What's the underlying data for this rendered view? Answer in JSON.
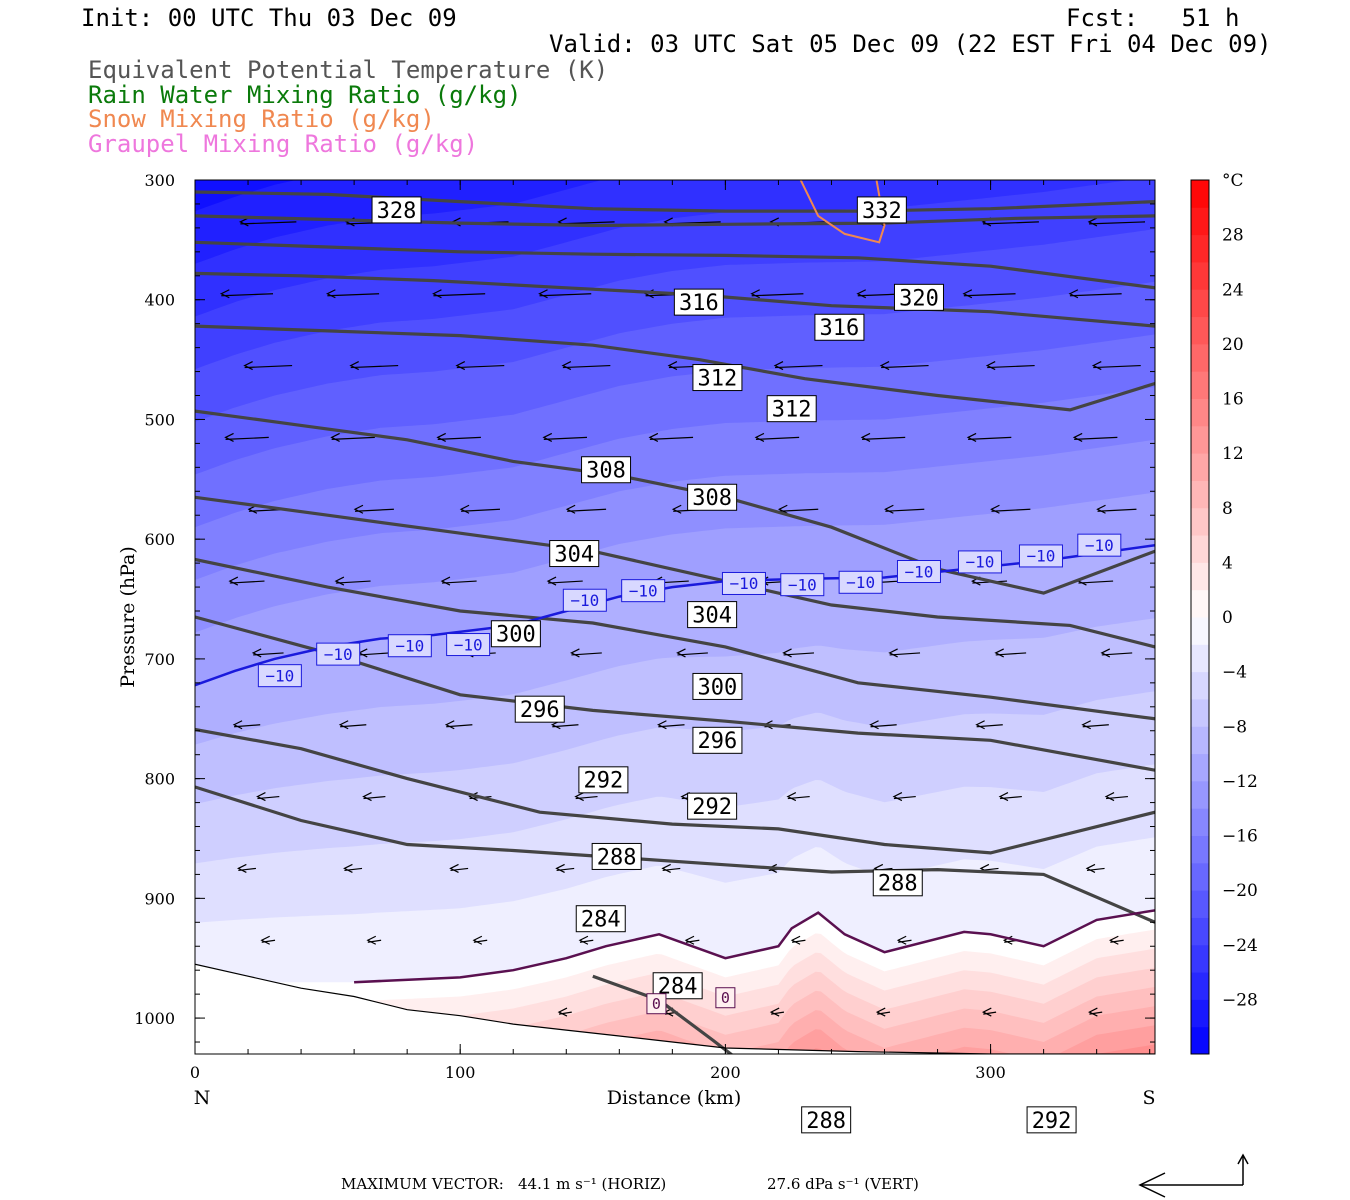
{
  "header": {
    "init": "Init: 00 UTC Thu 03 Dec 09",
    "fcst": "Fcst:   51 h",
    "valid": "Valid: 03 UTC Sat 05 Dec 09 (22 EST Fri 04 Dec 09)"
  },
  "legend": [
    {
      "label": "Equivalent Potential Temperature (K)",
      "color": "#555555"
    },
    {
      "label": "Rain Water Mixing Ratio (g/kg)",
      "color": "#0a7a0a"
    },
    {
      "label": "Snow Mixing Ratio (g/kg)",
      "color": "#f08850"
    },
    {
      "label": "Graupel Mixing Ratio (g/kg)",
      "color": "#ee77dd"
    }
  ],
  "footer": {
    "max_vector_label": "MAXIMUM VECTOR:",
    "horiz": "44.1 m s⁻¹ (HORIZ)",
    "vert": "27.6 dPa s⁻¹ (VERT)"
  },
  "chart_data": {
    "type": "contour",
    "xlabel": "Distance (km)",
    "ylabel": "Pressure (hPa)",
    "xlim": [
      0,
      362
    ],
    "ylim": [
      1030,
      300
    ],
    "x_ticks": [
      0,
      100,
      200,
      300
    ],
    "y_ticks": [
      300,
      400,
      500,
      600,
      700,
      800,
      900,
      1000
    ],
    "x_end_labels": {
      "left": "N",
      "right": "S"
    },
    "colorbar": {
      "unit": "°C",
      "levels": [
        -32,
        -30,
        -28,
        -26,
        -24,
        -22,
        -20,
        -18,
        -16,
        -14,
        -12,
        -10,
        -8,
        -6,
        -4,
        -2,
        0,
        2,
        4,
        6,
        8,
        10,
        12,
        14,
        16,
        18,
        20,
        22,
        24,
        26,
        28,
        30,
        32
      ],
      "tick_values": [
        28,
        24,
        20,
        16,
        12,
        8,
        4,
        0,
        -4,
        -8,
        -12,
        -16,
        -20,
        -24,
        -28
      ],
      "cold_color": "#0000ff",
      "warm_color": "#ff0000"
    },
    "theta_e_contours": [
      {
        "value": 328,
        "points": [
          [
            0,
            310
          ],
          [
            50,
            312
          ],
          [
            100,
            318
          ],
          [
            150,
            324
          ],
          [
            200,
            326
          ],
          [
            250,
            326
          ],
          [
            300,
            324
          ],
          [
            362,
            318
          ]
        ]
      },
      {
        "value": 332,
        "points": [
          [
            0,
            330
          ],
          [
            50,
            333
          ],
          [
            100,
            336
          ],
          [
            150,
            338
          ],
          [
            200,
            337
          ],
          [
            260,
            336
          ],
          [
            310,
            332
          ],
          [
            362,
            330
          ]
        ]
      },
      {
        "value": 320,
        "points": [
          [
            0,
            352
          ],
          [
            50,
            356
          ],
          [
            100,
            360
          ],
          [
            150,
            362
          ],
          [
            200,
            363
          ],
          [
            250,
            365
          ],
          [
            300,
            372
          ],
          [
            362,
            390
          ]
        ]
      },
      {
        "value": 316,
        "points": [
          [
            0,
            378
          ],
          [
            40,
            380
          ],
          [
            90,
            384
          ],
          [
            140,
            390
          ],
          [
            190,
            396
          ],
          [
            240,
            405
          ],
          [
            300,
            410
          ],
          [
            362,
            422
          ]
        ]
      },
      {
        "value": 312,
        "points": [
          [
            0,
            422
          ],
          [
            50,
            426
          ],
          [
            100,
            430
          ],
          [
            150,
            438
          ],
          [
            190,
            450
          ],
          [
            230,
            466
          ],
          [
            280,
            480
          ],
          [
            330,
            492
          ],
          [
            362,
            470
          ]
        ]
      },
      {
        "value": 308,
        "points": [
          [
            0,
            493
          ],
          [
            40,
            505
          ],
          [
            80,
            517
          ],
          [
            120,
            535
          ],
          [
            160,
            547
          ],
          [
            200,
            565
          ],
          [
            240,
            590
          ],
          [
            280,
            625
          ],
          [
            320,
            645
          ],
          [
            362,
            610
          ]
        ]
      },
      {
        "value": 304,
        "points": [
          [
            0,
            565
          ],
          [
            50,
            580
          ],
          [
            100,
            595
          ],
          [
            150,
            610
          ],
          [
            200,
            635
          ],
          [
            240,
            655
          ],
          [
            280,
            665
          ],
          [
            330,
            672
          ],
          [
            362,
            690
          ]
        ]
      },
      {
        "value": 300,
        "points": [
          [
            0,
            617
          ],
          [
            50,
            640
          ],
          [
            100,
            660
          ],
          [
            150,
            670
          ],
          [
            200,
            690
          ],
          [
            250,
            720
          ],
          [
            300,
            732
          ],
          [
            362,
            750
          ]
        ]
      },
      {
        "value": 296,
        "points": [
          [
            0,
            665
          ],
          [
            50,
            695
          ],
          [
            100,
            730
          ],
          [
            150,
            743
          ],
          [
            200,
            752
          ],
          [
            250,
            762
          ],
          [
            300,
            768
          ],
          [
            362,
            793
          ]
        ]
      },
      {
        "value": 292,
        "points": [
          [
            0,
            759
          ],
          [
            40,
            775
          ],
          [
            80,
            800
          ],
          [
            130,
            828
          ],
          [
            180,
            838
          ],
          [
            220,
            842
          ],
          [
            260,
            855
          ],
          [
            300,
            862
          ],
          [
            362,
            828
          ]
        ]
      },
      {
        "value": 288,
        "points": [
          [
            0,
            807
          ],
          [
            40,
            835
          ],
          [
            80,
            855
          ],
          [
            120,
            860
          ],
          [
            160,
            866
          ],
          [
            200,
            872
          ],
          [
            240,
            878
          ],
          [
            280,
            876
          ],
          [
            320,
            880
          ],
          [
            362,
            920
          ]
        ]
      },
      {
        "value": 284,
        "points": [
          [
            150,
            965
          ],
          [
            175,
            985
          ],
          [
            195,
            1018
          ],
          [
            205,
            1035
          ]
        ]
      }
    ],
    "contour_labels": [
      {
        "text": "328",
        "x": 76,
        "p": 325
      },
      {
        "text": "332",
        "x": 259,
        "p": 325
      },
      {
        "text": "316",
        "x": 190,
        "p": 402
      },
      {
        "text": "320",
        "x": 273,
        "p": 398
      },
      {
        "text": "316",
        "x": 243,
        "p": 423
      },
      {
        "text": "312",
        "x": 197,
        "p": 465
      },
      {
        "text": "312",
        "x": 225,
        "p": 491
      },
      {
        "text": "308",
        "x": 155,
        "p": 542
      },
      {
        "text": "308",
        "x": 195,
        "p": 565
      },
      {
        "text": "304",
        "x": 143,
        "p": 612
      },
      {
        "text": "304",
        "x": 195,
        "p": 663
      },
      {
        "text": "300",
        "x": 121,
        "p": 679
      },
      {
        "text": "300",
        "x": 197,
        "p": 723
      },
      {
        "text": "296",
        "x": 130,
        "p": 742
      },
      {
        "text": "296",
        "x": 197,
        "p": 768
      },
      {
        "text": "292",
        "x": 154,
        "p": 801
      },
      {
        "text": "292",
        "x": 195,
        "p": 823
      },
      {
        "text": "288",
        "x": 159,
        "p": 865
      },
      {
        "text": "288",
        "x": 265,
        "p": 887
      },
      {
        "text": "284",
        "x": 153,
        "p": 917
      },
      {
        "text": "284",
        "x": 182,
        "p": 973
      },
      {
        "text": "288",
        "x": 238,
        "p": 1085
      },
      {
        "text": "292",
        "x": 323,
        "p": 1085
      }
    ],
    "isotherm_minus10": {
      "value": -10,
      "points": [
        [
          0,
          722
        ],
        [
          15,
          710
        ],
        [
          30,
          700
        ],
        [
          50,
          690
        ],
        [
          70,
          683
        ],
        [
          90,
          680
        ],
        [
          120,
          672
        ],
        [
          140,
          660
        ],
        [
          160,
          648
        ],
        [
          180,
          640
        ],
        [
          200,
          635
        ],
        [
          230,
          633
        ],
        [
          260,
          632
        ],
        [
          290,
          625
        ],
        [
          320,
          618
        ],
        [
          362,
          605
        ]
      ],
      "labels": [
        [
          32,
          714
        ],
        [
          54,
          696
        ],
        [
          81,
          689
        ],
        [
          103,
          688
        ],
        [
          147,
          651
        ],
        [
          169,
          643
        ],
        [
          207,
          637
        ],
        [
          229,
          638
        ],
        [
          251,
          636
        ],
        [
          273,
          627
        ],
        [
          296,
          619
        ],
        [
          319,
          614
        ],
        [
          341,
          605
        ]
      ]
    },
    "isotherm_zero": {
      "value": 0,
      "points": [
        [
          60,
          970
        ],
        [
          100,
          966
        ],
        [
          120,
          960
        ],
        [
          140,
          950
        ],
        [
          155,
          940
        ],
        [
          175,
          930
        ],
        [
          200,
          950
        ],
        [
          220,
          940
        ],
        [
          225,
          925
        ],
        [
          235,
          912
        ],
        [
          245,
          930
        ],
        [
          260,
          945
        ],
        [
          290,
          928
        ],
        [
          300,
          930
        ],
        [
          320,
          940
        ],
        [
          340,
          918
        ],
        [
          362,
          910
        ]
      ],
      "labels": [
        [
          174,
          988
        ],
        [
          200,
          983
        ]
      ]
    },
    "snow_contour": {
      "points": [
        [
          224,
          280
        ],
        [
          235,
          330
        ],
        [
          245,
          345
        ],
        [
          258,
          352
        ],
        [
          260,
          338
        ],
        [
          257,
          300
        ]
      ]
    },
    "terrain": [
      [
        0,
        955
      ],
      [
        20,
        965
      ],
      [
        40,
        975
      ],
      [
        60,
        982
      ],
      [
        80,
        993
      ],
      [
        100,
        998
      ],
      [
        120,
        1005
      ],
      [
        140,
        1010
      ],
      [
        160,
        1015
      ],
      [
        180,
        1020
      ],
      [
        200,
        1025
      ],
      [
        250,
        1028
      ],
      [
        300,
        1030
      ],
      [
        362,
        1030
      ]
    ]
  }
}
